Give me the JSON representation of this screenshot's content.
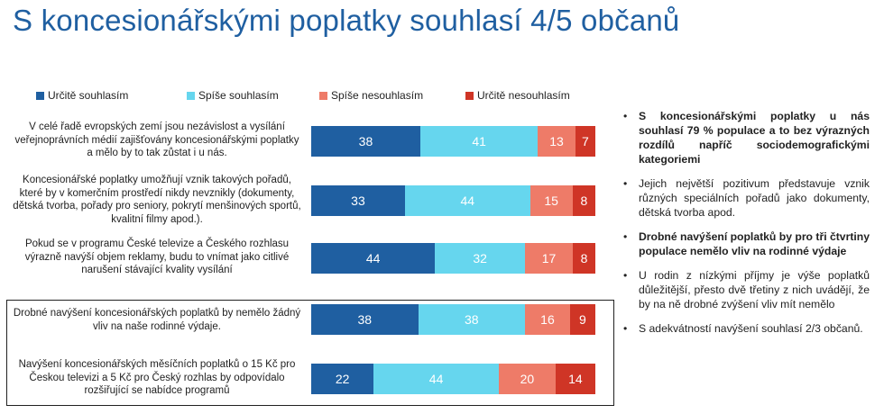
{
  "title": "S koncesionářskými poplatky souhlasí 4/5 občanů",
  "legend": [
    {
      "label": "Určitě souhlasím",
      "color": "#1f5fa1"
    },
    {
      "label": "Spíše souhlasím",
      "color": "#66d6ee"
    },
    {
      "label": "Spíše nesouhlasím",
      "color": "#ee7b68"
    },
    {
      "label": "Určitě nesouhlasím",
      "color": "#cf3526"
    }
  ],
  "chart_data": {
    "type": "bar",
    "orientation": "horizontal",
    "stacked": true,
    "normalized": true,
    "categories": [
      "V celé řadě evropských zemí jsou nezávislost a vysílání veřejnoprávních médií zajišťovány koncesionářskými poplatky a mělo by to tak zůstat i u nás.",
      "Koncesionářské poplatky umožňují vznik takových pořadů, které by v komerčním prostředí nikdy nevznikly (dokumenty, dětská tvorba, pořady pro seniory, pokrytí menšinových sportů, kvalitní filmy apod.).",
      "Pokud se v programu České televize a Českého rozhlasu výrazně navýší objem reklamy, budu to vnímat jako citlivé narušení stávající kvality vysílání",
      "Drobné navýšení koncesionářských poplatků by nemělo žádný vliv na naše rodinné výdaje.",
      "Navýšení koncesionářských měsíčních poplatků o 15 Kč pro Českou televizi a 5 Kč pro Český rozhlas by odpovídalo rozšiřující se nabídce programů"
    ],
    "series": [
      {
        "name": "Určitě souhlasím",
        "values": [
          38,
          33,
          44,
          38,
          22
        ]
      },
      {
        "name": "Spíše souhlasím",
        "values": [
          41,
          44,
          32,
          38,
          44
        ]
      },
      {
        "name": "Spíše nesouhlasím",
        "values": [
          13,
          15,
          17,
          16,
          20
        ]
      },
      {
        "name": "Určitě nesouhlasím",
        "values": [
          7,
          8,
          8,
          9,
          14
        ]
      }
    ],
    "legend_position": "top",
    "grid": false
  },
  "bullets": [
    {
      "text": "S koncesionářskými poplatky u nás souhlasí 79 % populace a to bez výrazných rozdílů napříč sociodemografickými kategoriemi",
      "bold": true
    },
    {
      "text": "Jejich největší pozitivum představuje vznik různých speciálních pořadů jako dokumenty, dětská tvorba apod.",
      "bold": false
    },
    {
      "text": "Drobné navýšení poplatků by pro tři čtvrtiny populace nemělo vliv na rodinné výdaje",
      "bold": true
    },
    {
      "text": "U rodin z nízkými příjmy je výše poplatků důležitější, přesto dvě třetiny z nich uvádějí, že by na ně drobné zvýšení vliv mít nemělo",
      "bold": false
    },
    {
      "text": "S adekvátností navýšení souhlasí 2/3 občanů.",
      "bold": false
    }
  ]
}
